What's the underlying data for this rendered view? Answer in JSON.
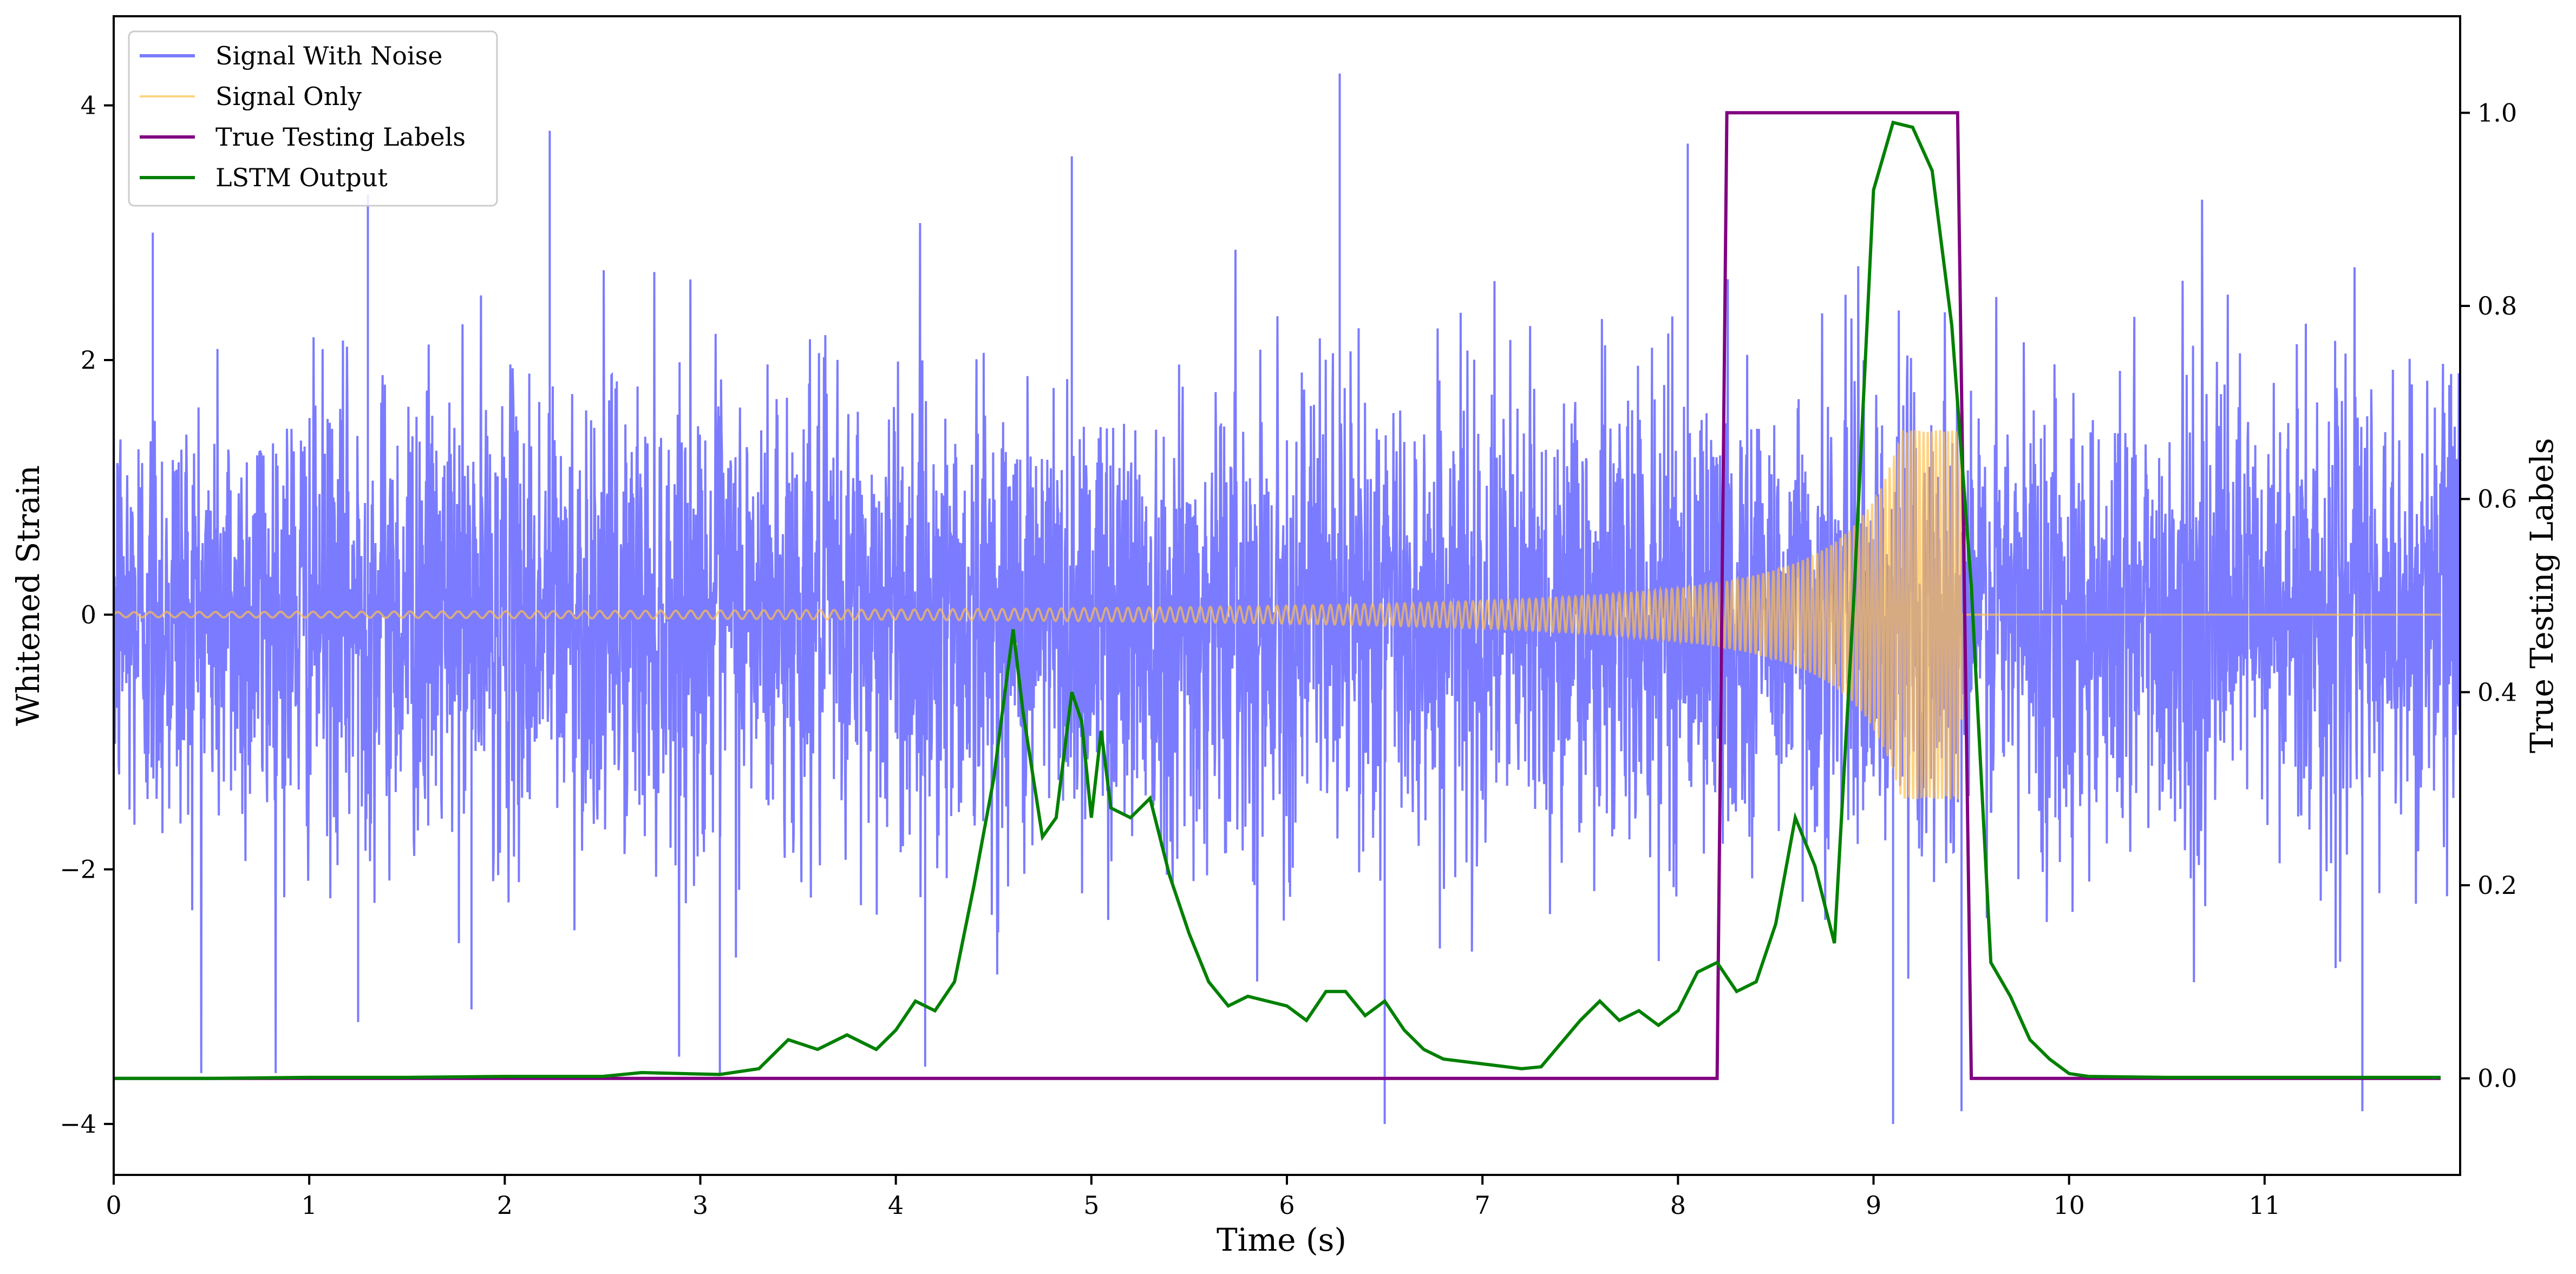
{
  "chart_data": {
    "type": "line",
    "xlabel": "Time (s)",
    "ylabel_left": "Whitened Strain",
    "ylabel_right": "True Testing Labels",
    "xlim": [
      0,
      12.0
    ],
    "ylim_left": [
      -4.4,
      4.7
    ],
    "ylim_right": [
      -0.1,
      1.1
    ],
    "x_ticks": [
      0,
      1,
      2,
      3,
      4,
      5,
      6,
      7,
      8,
      9,
      10,
      11
    ],
    "y_ticks_left": [
      -4,
      -2,
      0,
      2,
      4
    ],
    "y_ticks_right": [
      "0.0",
      "0.2",
      "0.4",
      "0.6",
      "0.8",
      "1.0"
    ],
    "grid": false,
    "legend_position": "upper-left",
    "series": [
      {
        "name": "Signal With Noise",
        "axis": "left",
        "color": "#7b7bff",
        "description_values": {
          "std": 0.9,
          "t_start": 0,
          "t_end": 12.0,
          "spikes": [
            [
              0.2,
              3.0
            ],
            [
              1.3,
              3.3
            ],
            [
              2.23,
              3.8
            ],
            [
              3.1,
              -3.6
            ],
            [
              4.9,
              3.6
            ],
            [
              6.27,
              4.25
            ],
            [
              6.5,
              -4.0
            ],
            [
              8.05,
              3.7
            ],
            [
              9.1,
              -4.0
            ],
            [
              9.45,
              -3.9
            ],
            [
              11.5,
              -3.9
            ],
            [
              1.25,
              -3.2
            ],
            [
              1.83,
              -3.1
            ],
            [
              4.15,
              -3.55
            ]
          ]
        }
      },
      {
        "name": "Signal Only",
        "axis": "left",
        "color": "#ffc14d",
        "chirp": {
          "t_start": 0,
          "t_merger": 9.45,
          "amp_start": 0.02,
          "amp_peak": 1.45,
          "f_start": 12,
          "f_end": 40
        }
      },
      {
        "name": "True Testing Labels",
        "axis": "right",
        "color": "#800080",
        "x": [
          0,
          8.2,
          8.25,
          9.43,
          9.5,
          11.9
        ],
        "y": [
          0,
          0,
          1,
          1,
          0,
          0
        ]
      },
      {
        "name": "LSTM Output",
        "axis": "right",
        "color": "#008000",
        "x": [
          0,
          0.5,
          1.0,
          1.5,
          2.0,
          2.5,
          2.7,
          2.9,
          3.1,
          3.3,
          3.45,
          3.6,
          3.75,
          3.9,
          4.0,
          4.1,
          4.2,
          4.3,
          4.4,
          4.5,
          4.6,
          4.65,
          4.75,
          4.82,
          4.9,
          4.95,
          5.0,
          5.05,
          5.1,
          5.2,
          5.3,
          5.4,
          5.5,
          5.6,
          5.7,
          5.8,
          5.9,
          6.0,
          6.1,
          6.2,
          6.3,
          6.4,
          6.5,
          6.6,
          6.7,
          6.8,
          7.0,
          7.2,
          7.3,
          7.5,
          7.6,
          7.7,
          7.8,
          7.9,
          8.0,
          8.1,
          8.2,
          8.3,
          8.4,
          8.5,
          8.6,
          8.7,
          8.8,
          8.9,
          9.0,
          9.1,
          9.2,
          9.3,
          9.4,
          9.5,
          9.6,
          9.7,
          9.8,
          9.9,
          10.0,
          10.1,
          10.5,
          11.0,
          11.9
        ],
        "y": [
          0,
          0,
          0.001,
          0.001,
          0.002,
          0.002,
          0.006,
          0.005,
          0.004,
          0.01,
          0.04,
          0.03,
          0.045,
          0.03,
          0.05,
          0.08,
          0.07,
          0.1,
          0.2,
          0.31,
          0.465,
          0.38,
          0.25,
          0.27,
          0.4,
          0.37,
          0.27,
          0.36,
          0.28,
          0.27,
          0.29,
          0.21,
          0.15,
          0.1,
          0.075,
          0.085,
          0.08,
          0.075,
          0.06,
          0.09,
          0.09,
          0.065,
          0.08,
          0.05,
          0.03,
          0.02,
          0.015,
          0.01,
          0.012,
          0.06,
          0.08,
          0.06,
          0.07,
          0.055,
          0.07,
          0.11,
          0.12,
          0.09,
          0.1,
          0.16,
          0.27,
          0.22,
          0.14,
          0.5,
          0.92,
          0.99,
          0.985,
          0.94,
          0.78,
          0.51,
          0.12,
          0.085,
          0.04,
          0.02,
          0.005,
          0.002,
          0.001,
          0.001,
          0.001
        ]
      }
    ]
  }
}
